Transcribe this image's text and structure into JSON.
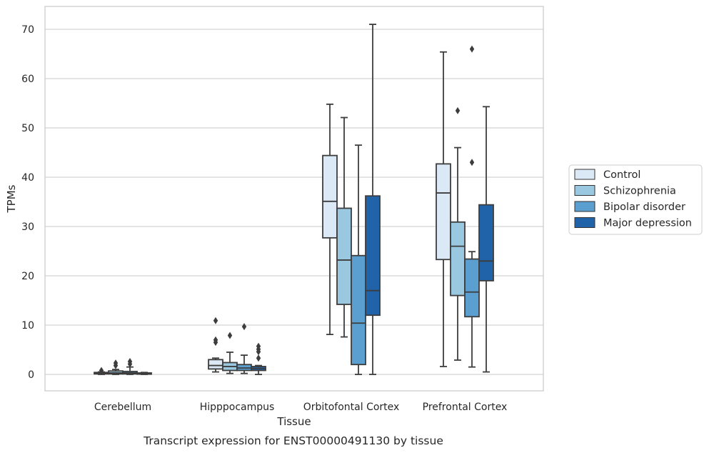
{
  "chart_data": {
    "type": "box",
    "xlabel": "Tissue",
    "ylabel": "TPMs",
    "caption": "Transcript expression for ENST00000491130 by tissue",
    "ylim": [
      -3.5,
      74.5
    ],
    "yticks": [
      0,
      10,
      20,
      30,
      40,
      50,
      60,
      70
    ],
    "grid": "horizontal",
    "legend_position": "right",
    "categories": [
      "Cerebellum",
      "Hipppocampus",
      "Orbitofontal Cortex",
      "Prefrontal Cortex"
    ],
    "series": [
      {
        "name": "Control",
        "color": "#dbe9f6",
        "boxes": [
          {
            "whislo": 0,
            "q1": 0.1,
            "med": 0.2,
            "q3": 0.4,
            "whishi": 0.5,
            "fliers": [
              0.8
            ]
          },
          {
            "whislo": 0.5,
            "q1": 1.1,
            "med": 1.8,
            "q3": 3.0,
            "whishi": 3.3,
            "fliers": [
              6.5,
              7.0,
              10.9
            ]
          },
          {
            "whislo": 8.1,
            "q1": 27.7,
            "med": 35.1,
            "q3": 44.4,
            "whishi": 54.8,
            "fliers": []
          },
          {
            "whislo": 1.6,
            "q1": 23.3,
            "med": 36.8,
            "q3": 42.7,
            "whishi": 65.4,
            "fliers": []
          }
        ]
      },
      {
        "name": "Schizophrenia",
        "color": "#9ac8e0",
        "boxes": [
          {
            "whislo": 0,
            "q1": 0.1,
            "med": 0.3,
            "q3": 0.7,
            "whishi": 1.0,
            "fliers": [
              1.8,
              2.3
            ]
          },
          {
            "whislo": 0.2,
            "q1": 0.8,
            "med": 1.6,
            "q3": 2.4,
            "whishi": 4.5,
            "fliers": [
              7.9
            ]
          },
          {
            "whislo": 7.6,
            "q1": 14.2,
            "med": 23.2,
            "q3": 33.7,
            "whishi": 52.1,
            "fliers": []
          },
          {
            "whislo": 2.9,
            "q1": 16.0,
            "med": 26.0,
            "q3": 30.9,
            "whishi": 46.0,
            "fliers": [
              53.5
            ]
          }
        ]
      },
      {
        "name": "Bipolar disorder",
        "color": "#5a9fcf",
        "boxes": [
          {
            "whislo": 0,
            "q1": 0.1,
            "med": 0.3,
            "q3": 0.6,
            "whishi": 1.5,
            "fliers": [
              2.1,
              2.6
            ]
          },
          {
            "whislo": 0.2,
            "q1": 0.8,
            "med": 1.3,
            "q3": 2.0,
            "whishi": 3.9,
            "fliers": [
              9.7
            ]
          },
          {
            "whislo": 0,
            "q1": 2.0,
            "med": 10.4,
            "q3": 24.1,
            "whishi": 46.5,
            "fliers": []
          },
          {
            "whislo": 1.5,
            "q1": 11.7,
            "med": 16.7,
            "q3": 23.4,
            "whishi": 24.9,
            "fliers": [
              43.0,
              66.0
            ]
          }
        ]
      },
      {
        "name": "Major depression",
        "color": "#2163a9",
        "boxes": [
          {
            "whislo": 0,
            "q1": 0.05,
            "med": 0.15,
            "q3": 0.3,
            "whishi": 0.4,
            "fliers": []
          },
          {
            "whislo": 0,
            "q1": 0.8,
            "med": 1.2,
            "q3": 1.6,
            "whishi": 1.8,
            "fliers": [
              3.3,
              4.6,
              5.1,
              5.7
            ]
          },
          {
            "whislo": 0,
            "q1": 12.0,
            "med": 17.0,
            "q3": 36.2,
            "whishi": 71.0,
            "fliers": []
          },
          {
            "whislo": 0.5,
            "q1": 19.0,
            "med": 23.0,
            "q3": 34.4,
            "whishi": 54.3,
            "fliers": []
          }
        ]
      }
    ]
  }
}
